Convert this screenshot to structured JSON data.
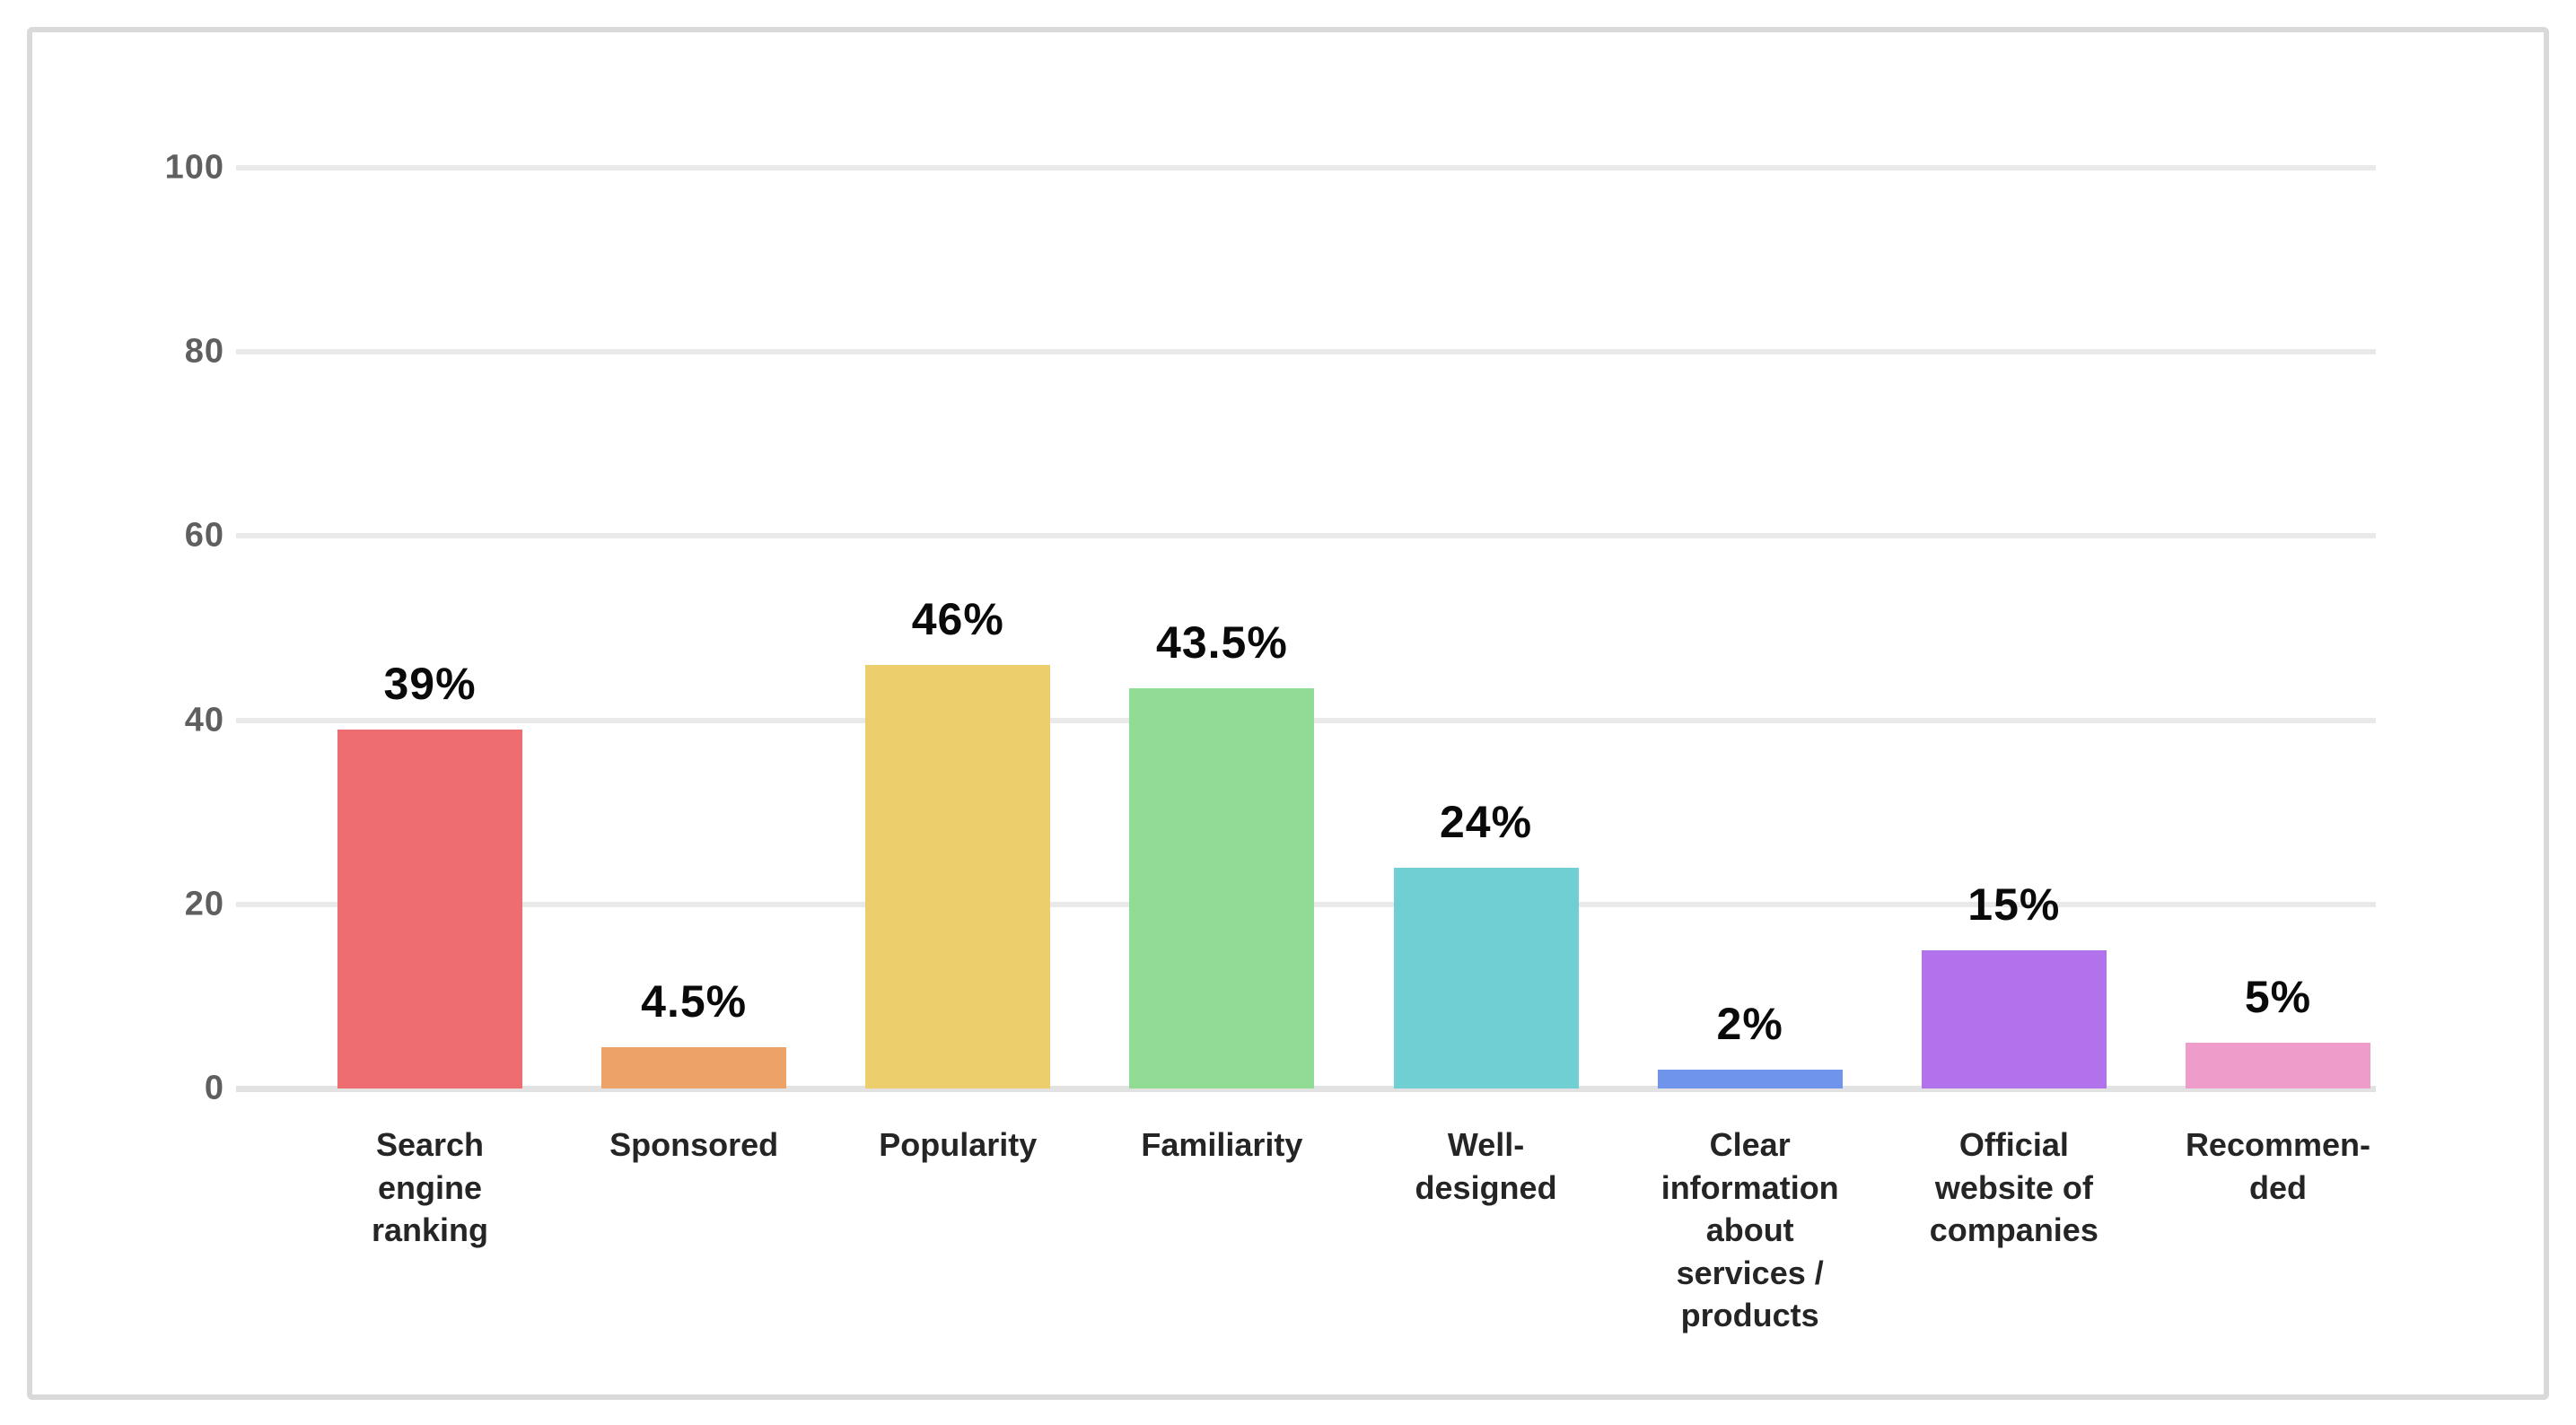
{
  "chart_data": {
    "type": "bar",
    "title": "",
    "xlabel": "",
    "ylabel": "",
    "categories": [
      "Search\nengine\nranking",
      "Sponsored",
      "Popularity",
      "Familiarity",
      "Well-\ndesigned",
      "Clear\ninformation\nabout\nservices /\nproducts",
      "Official\nwebsite of\ncompanies",
      "Recommen-\nded"
    ],
    "values": [
      39,
      4.5,
      46,
      43.5,
      24,
      2,
      15,
      5
    ],
    "value_labels": [
      "39%",
      "4.5%",
      "46%",
      "43.5%",
      "24%",
      "2%",
      "15%",
      "5%"
    ],
    "bar_colors": [
      "#ee6d70",
      "#eda368",
      "#edce6d",
      "#90dc94",
      "#6fcfd2",
      "#6e94ec",
      "#b172ec",
      "#ee9cc9"
    ],
    "yticks": [
      0,
      20,
      40,
      60,
      80,
      100
    ],
    "ylim": [
      0,
      100
    ],
    "grid": "horizontal-only",
    "legend": "none"
  },
  "colors": {
    "background": "#ffffff",
    "card_border": "#d9d9d9",
    "gridline": "#e9e9e9",
    "baseline": "#e2e2e2",
    "tick_text": "#5f5f5f",
    "value_text": "#0a0a0a",
    "category_text": "#252525"
  }
}
